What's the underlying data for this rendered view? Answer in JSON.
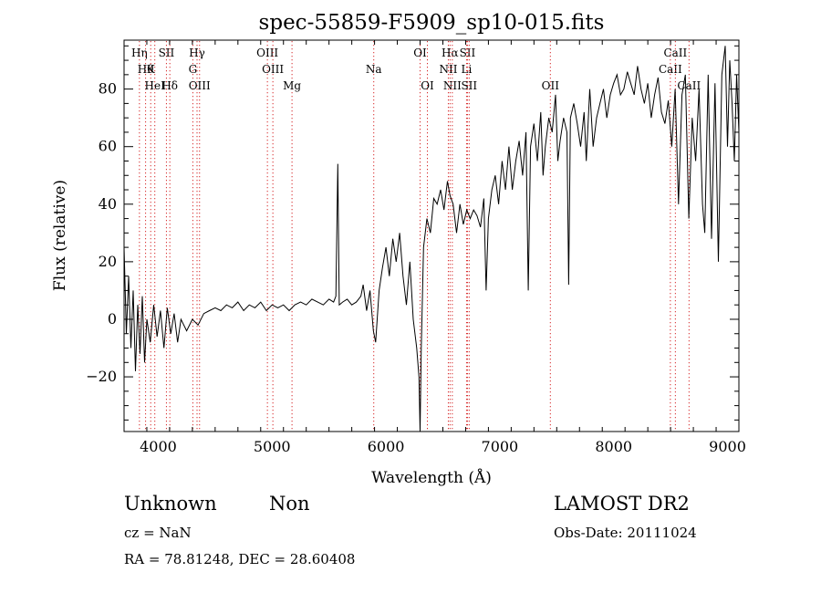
{
  "chart_data": {
    "type": "line",
    "title": "spec-55859-F5909_sp10-015.fits",
    "xlabel": "Wavelength (Å)",
    "ylabel": "Flux (relative)",
    "xlim": [
      3700,
      9100
    ],
    "ylim": [
      -39,
      97
    ],
    "xticks": [
      4000,
      5000,
      6000,
      7000,
      8000,
      9000
    ],
    "yticks": [
      -20,
      0,
      20,
      40,
      60,
      80
    ],
    "grid": false,
    "line_color": "#000000",
    "marker_color": "#d62728",
    "series": [
      {
        "x": [
          3700,
          3720,
          3740,
          3760,
          3780,
          3800,
          3820,
          3840,
          3860,
          3880,
          3900,
          3930,
          3960,
          3990,
          4020,
          4050,
          4080,
          4110,
          4140,
          4170,
          4200,
          4250,
          4300,
          4350,
          4400,
          4450,
          4500,
          4550,
          4600,
          4650,
          4700,
          4750,
          4800,
          4850,
          4900,
          4950,
          5000,
          5050,
          5100,
          5150,
          5200,
          5250,
          5300,
          5350,
          5400,
          5450,
          5500,
          5540,
          5560,
          5577,
          5590,
          5620,
          5660,
          5700,
          5740,
          5780,
          5800,
          5830,
          5860,
          5890,
          5910,
          5940,
          5970,
          6000,
          6030,
          6060,
          6090,
          6120,
          6150,
          6180,
          6210,
          6240,
          6270,
          6290,
          6300,
          6310,
          6330,
          6360,
          6390,
          6420,
          6450,
          6480,
          6510,
          6540,
          6563,
          6590,
          6620,
          6650,
          6680,
          6710,
          6740,
          6770,
          6800,
          6830,
          6860,
          6880,
          6900,
          6930,
          6960,
          6990,
          7020,
          7050,
          7080,
          7110,
          7140,
          7170,
          7200,
          7230,
          7250,
          7270,
          7300,
          7330,
          7360,
          7380,
          7400,
          7430,
          7460,
          7490,
          7510,
          7530,
          7560,
          7590,
          7605,
          7620,
          7650,
          7680,
          7710,
          7740,
          7760,
          7790,
          7820,
          7850,
          7880,
          7910,
          7940,
          7970,
          8000,
          8030,
          8060,
          8090,
          8120,
          8150,
          8180,
          8210,
          8240,
          8270,
          8300,
          8330,
          8360,
          8390,
          8420,
          8450,
          8480,
          8510,
          8540,
          8570,
          8600,
          8630,
          8660,
          8690,
          8720,
          8750,
          8780,
          8800,
          8830,
          8860,
          8890,
          8920,
          8950,
          8980,
          9000,
          9020,
          9040,
          9060,
          9080,
          9100
        ],
        "y": [
          25,
          -5,
          15,
          -10,
          10,
          -18,
          5,
          -12,
          8,
          -15,
          0,
          -8,
          5,
          -6,
          3,
          -10,
          4,
          -5,
          2,
          -8,
          0,
          -4,
          0,
          -2,
          2,
          3,
          4,
          3,
          5,
          4,
          6,
          3,
          5,
          4,
          6,
          3,
          5,
          4,
          5,
          3,
          5,
          6,
          5,
          7,
          6,
          5,
          7,
          6,
          8,
          54,
          5,
          6,
          7,
          5,
          6,
          8,
          12,
          3,
          10,
          -4,
          -8,
          10,
          18,
          25,
          15,
          28,
          20,
          30,
          15,
          5,
          20,
          0,
          -10,
          -20,
          -40,
          -10,
          25,
          35,
          30,
          42,
          40,
          45,
          38,
          48,
          43,
          40,
          30,
          40,
          33,
          38,
          35,
          38,
          36,
          32,
          42,
          10,
          35,
          45,
          50,
          40,
          55,
          45,
          60,
          45,
          55,
          62,
          50,
          65,
          10,
          60,
          68,
          55,
          72,
          50,
          60,
          70,
          65,
          78,
          55,
          62,
          70,
          65,
          12,
          70,
          75,
          68,
          60,
          72,
          55,
          80,
          60,
          70,
          75,
          80,
          70,
          78,
          82,
          85,
          78,
          80,
          86,
          82,
          78,
          88,
          80,
          75,
          82,
          70,
          78,
          84,
          72,
          68,
          76,
          60,
          80,
          40,
          78,
          85,
          35,
          70,
          55,
          80,
          40,
          30,
          85,
          28,
          82,
          20,
          85,
          95,
          60,
          90,
          75,
          55,
          85,
          65
        ],
        "points_note": ""
      }
    ],
    "line_markers": [
      {
        "x": 3835,
        "label": "Hη",
        "row": 0
      },
      {
        "x": 3889,
        "label": "Hθ",
        "row": 1
      },
      {
        "x": 3934,
        "label": "K",
        "row": 1
      },
      {
        "x": 3970,
        "label": "HeI",
        "row": 2
      },
      {
        "x": 4072,
        "label": "SII",
        "row": 0
      },
      {
        "x": 4102,
        "label": "Hδ",
        "row": 2
      },
      {
        "x": 4304,
        "label": "G",
        "row": 1
      },
      {
        "x": 4341,
        "label": "Hγ",
        "row": 0
      },
      {
        "x": 4363,
        "label": "OIII",
        "row": 2
      },
      {
        "x": 4959,
        "label": "OIII",
        "row": 0
      },
      {
        "x": 5007,
        "label": "OIII",
        "row": 1
      },
      {
        "x": 5175,
        "label": "Mg",
        "row": 2
      },
      {
        "x": 5893,
        "label": "Na",
        "row": 1
      },
      {
        "x": 6300,
        "label": "OI",
        "row": 0
      },
      {
        "x": 6364,
        "label": "OI",
        "row": 2
      },
      {
        "x": 6548,
        "label": "NII",
        "row": 1
      },
      {
        "x": 6563,
        "label": "Hα",
        "row": 0
      },
      {
        "x": 6583,
        "label": "NII",
        "row": 2
      },
      {
        "x": 6708,
        "label": "Li",
        "row": 1
      },
      {
        "x": 6716,
        "label": "SII",
        "row": 0
      },
      {
        "x": 6731,
        "label": "SII",
        "row": 2
      },
      {
        "x": 7444,
        "label": "OII",
        "row": 2
      },
      {
        "x": 8498,
        "label": "CaII",
        "row": 1
      },
      {
        "x": 8542,
        "label": "CaII",
        "row": 0
      },
      {
        "x": 8662,
        "label": "CaII",
        "row": 2
      }
    ]
  },
  "footer": {
    "object_class": "Unknown",
    "subclass": "Non",
    "survey": "LAMOST DR2",
    "cz": "cz = NaN",
    "obs_date": "Obs-Date: 20111024",
    "coords": "RA =  78.81248, DEC =  28.60408"
  }
}
